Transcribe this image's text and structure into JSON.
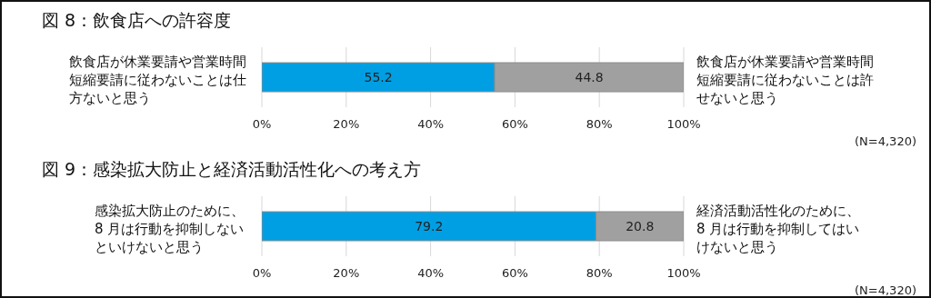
{
  "chart_data": [
    {
      "type": "bar",
      "title": "図 8：飲食店への許容度",
      "orientation": "horizontal",
      "stacked": true,
      "categories": [
        null
      ],
      "series": [
        {
          "name": "飲食店が休業要請や営業時間短縮要請に従わないことは仕方ないと思う",
          "color": "#009fe3",
          "values": [
            55.2
          ]
        },
        {
          "name": "飲食店が休業要請や営業時間短縮要請に従わないことは許せないと思う",
          "color": "#a0a0a0",
          "values": [
            44.8
          ]
        }
      ],
      "xlim": [
        0,
        100
      ],
      "xticks": [
        {
          "value": 0,
          "label": "0%"
        },
        {
          "value": 20,
          "label": "20%"
        },
        {
          "value": 40,
          "label": "40%"
        },
        {
          "value": 60,
          "label": "60%"
        },
        {
          "value": 80,
          "label": "80%"
        },
        {
          "value": 100,
          "label": "100%"
        }
      ],
      "grid": "x",
      "data_labels": true,
      "annotations": [
        "(N=4,320)"
      ]
    },
    {
      "type": "bar",
      "title": "図 9：感染拡大防止と経済活動活性化への考え方",
      "orientation": "horizontal",
      "stacked": true,
      "categories": [
        null
      ],
      "series": [
        {
          "name": "感染拡大防止のために、8 月は行動を抑制しないといけないと思う",
          "color": "#009fe3",
          "values": [
            79.2
          ]
        },
        {
          "name": "経済活動活性化のために、8 月は行動を抑制してはいけないと思う",
          "color": "#a0a0a0",
          "values": [
            20.8
          ]
        }
      ],
      "xlim": [
        0,
        100
      ],
      "xticks": [
        {
          "value": 0,
          "label": "0%"
        },
        {
          "value": 20,
          "label": "20%"
        },
        {
          "value": 40,
          "label": "40%"
        },
        {
          "value": 60,
          "label": "60%"
        },
        {
          "value": 80,
          "label": "80%"
        },
        {
          "value": 100,
          "label": "100%"
        }
      ],
      "grid": "x",
      "data_labels": true,
      "annotations": [
        "(N=4,320)"
      ]
    }
  ]
}
